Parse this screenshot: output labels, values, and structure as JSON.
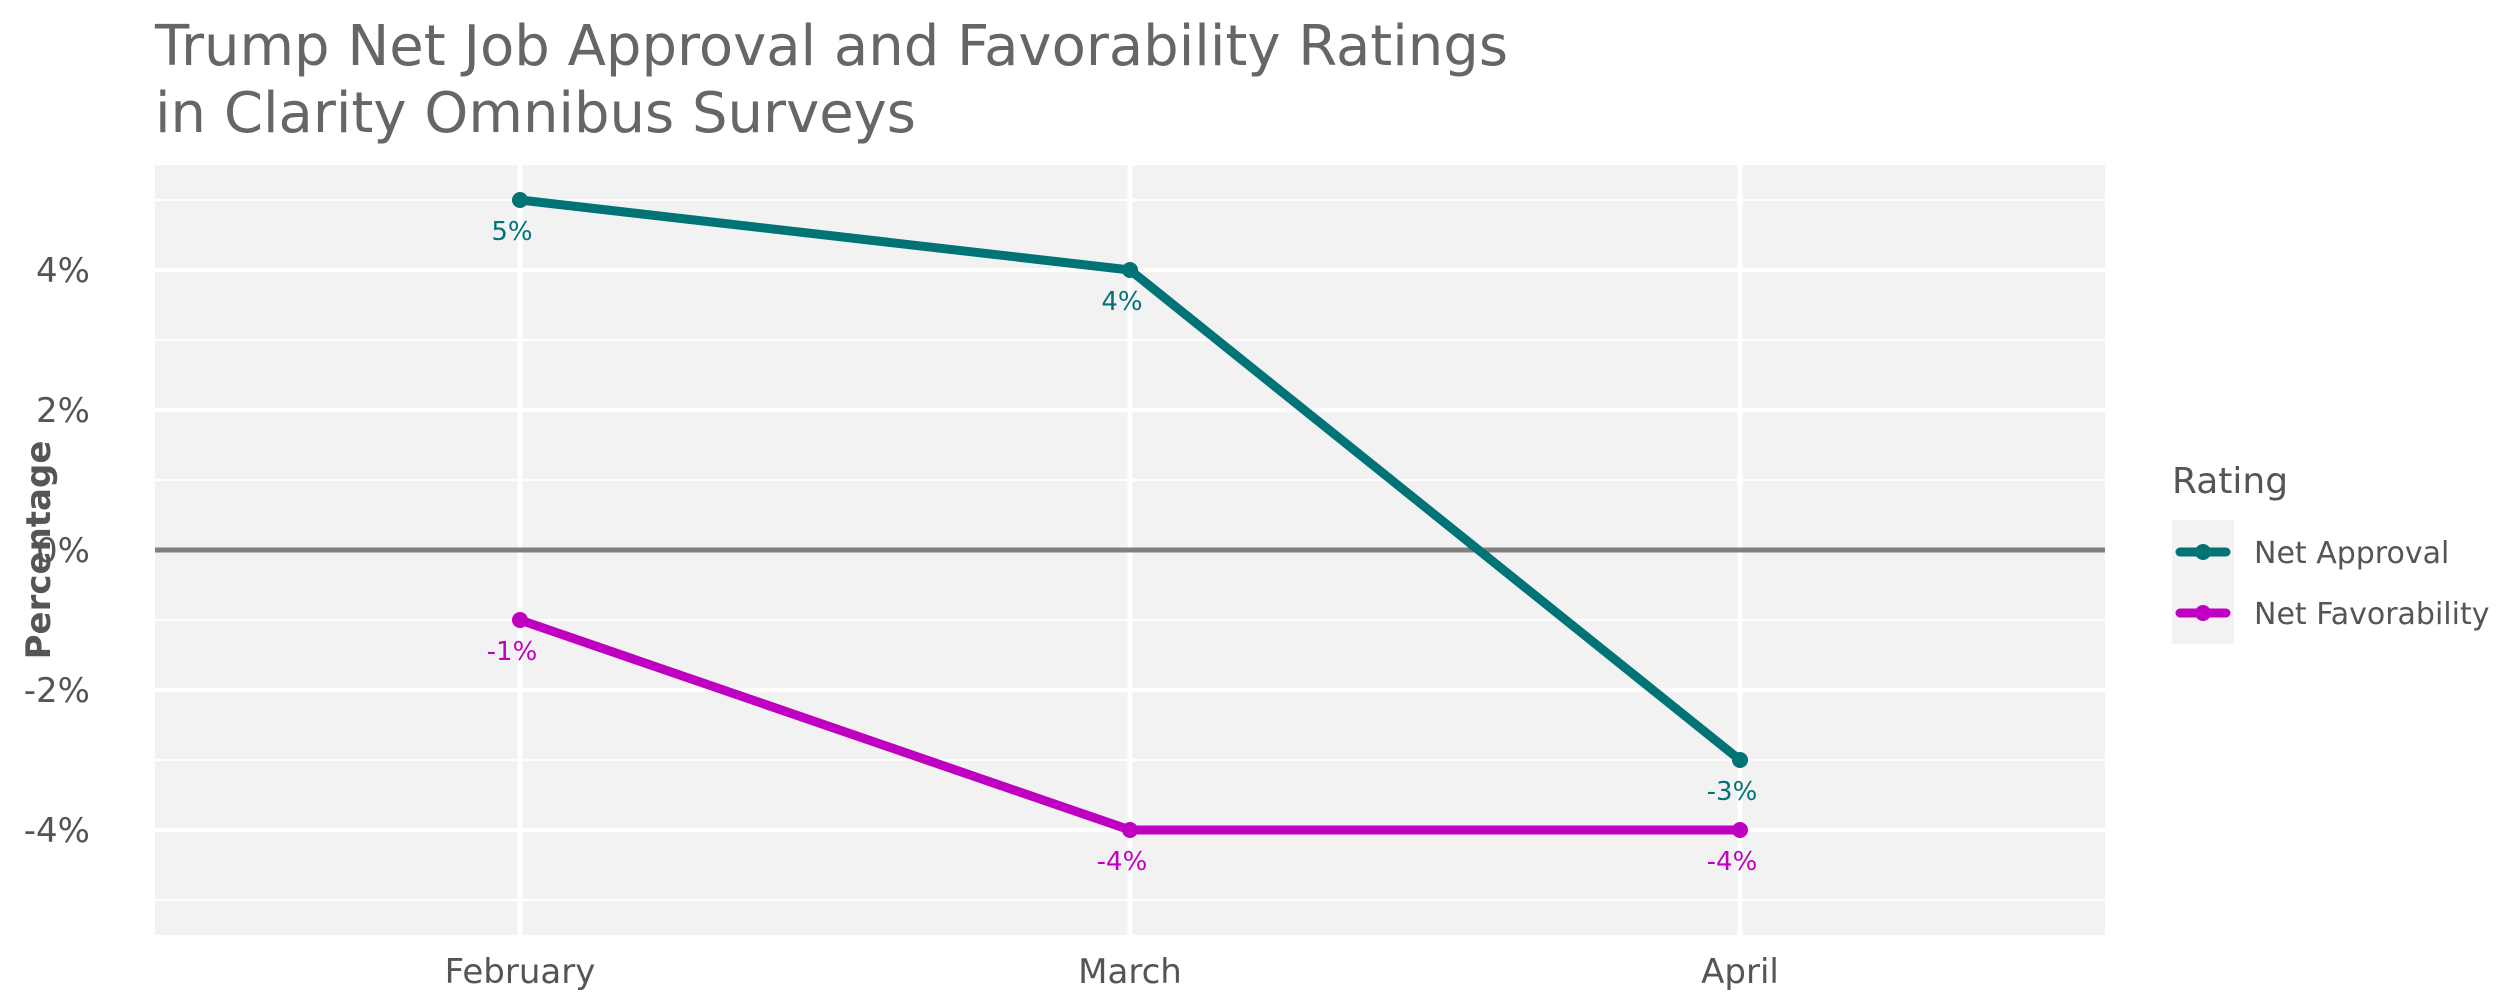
{
  "title_line1": "Trump Net Job Approval and Favorability Ratings",
  "title_line2": "in Clarity Omnibus Surveys",
  "colors": {
    "panel": "#f2f2f2",
    "grid": "#ffffff",
    "zero_line": "#808080",
    "net_approval": "#007377",
    "net_favorability": "#c000c0"
  },
  "chart_data": {
    "type": "line",
    "title": "Trump Net Job Approval and Favorability Ratings in Clarity Omnibus Surveys",
    "xlabel": "",
    "ylabel": "Percentage",
    "categories": [
      "February",
      "March",
      "April"
    ],
    "ylim": [
      -5.5,
      5.5
    ],
    "yticks": [
      4,
      2,
      0,
      -2,
      -4
    ],
    "ytick_labels": [
      "4%",
      "2%",
      "0%",
      "-2%",
      "-4%"
    ],
    "grid": true,
    "legend": {
      "title": "Rating",
      "position": "right"
    },
    "series": [
      {
        "name": "Net Approval",
        "color": "#007377",
        "values": [
          5,
          4,
          -3
        ],
        "labels": [
          "5%",
          "4%",
          "-3%"
        ]
      },
      {
        "name": "Net Favorability",
        "color": "#c000c0",
        "values": [
          -1,
          -4,
          -4
        ],
        "labels": [
          "-1%",
          "-4%",
          "-4%"
        ]
      }
    ]
  }
}
